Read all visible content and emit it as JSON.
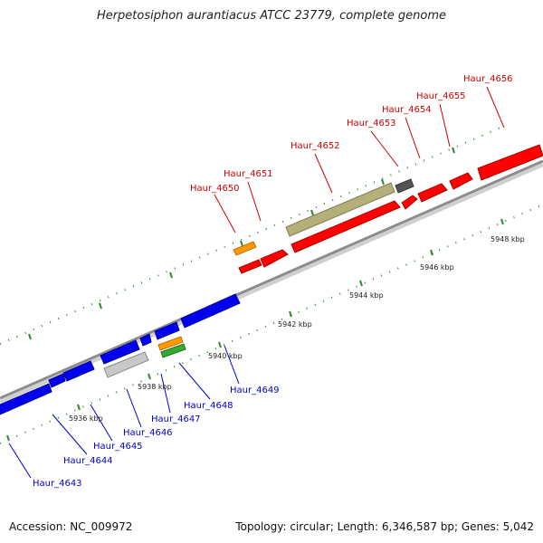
{
  "title": "Herpetosiphon aurantiacus ATCC 23779, complete genome",
  "footer": {
    "accession": "Accession: NC_009972",
    "topology": "Topology: circular; Length: 6,346,587 bp; Genes: 5,042"
  },
  "colors": {
    "backbone": "#8c8c8c",
    "tick": "#2e8b2e",
    "forward_label": "#cc0000",
    "reverse_label": "#0000cc",
    "forward_gene": "#ff0000",
    "reverse_gene": "#0000ee",
    "orange_gene": "#ff9900",
    "khaki_gene": "#b5b07a",
    "dark_gene": "#555555",
    "light_gene": "#c8c8c8",
    "green_gene": "#33aa33"
  },
  "kbp_labels": [
    "5936 kbp",
    "5938 kbp",
    "5940 kbp",
    "5942 kbp",
    "5944 kbp",
    "5946 kbp",
    "5948 kbp"
  ],
  "forward_genes": [
    "Haur_4650",
    "Haur_4651",
    "Haur_4652",
    "Haur_4653",
    "Haur_4654",
    "Haur_4655",
    "Haur_4656"
  ],
  "reverse_genes": [
    "Haur_4643",
    "Haur_4644",
    "Haur_4645",
    "Haur_4646",
    "Haur_4647",
    "Haur_4648",
    "Haur_4649"
  ]
}
